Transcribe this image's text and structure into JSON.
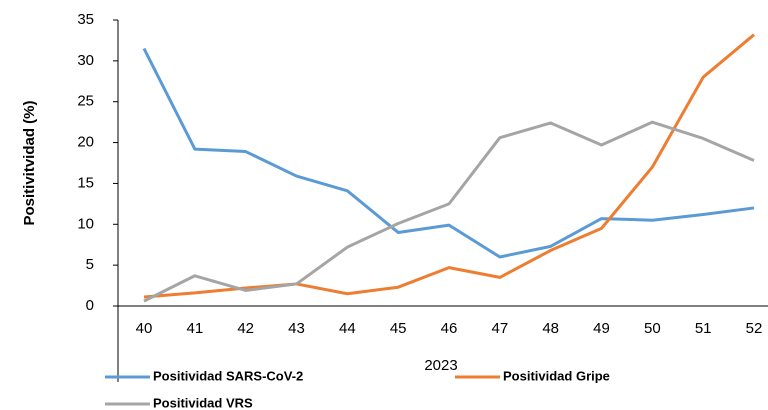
{
  "chart_data": {
    "type": "line",
    "x_label": "2023",
    "y_label": "Positivitvidad (%)",
    "categories": [
      "40",
      "41",
      "42",
      "43",
      "44",
      "45",
      "46",
      "47",
      "48",
      "49",
      "50",
      "51",
      "52"
    ],
    "series": [
      {
        "name": "Positividad SARS-CoV-2",
        "color": "#5b9bd5",
        "values": [
          31.5,
          19.2,
          18.9,
          15.9,
          14.1,
          9.0,
          9.9,
          6.0,
          7.3,
          10.7,
          10.5,
          11.2,
          12.0
        ]
      },
      {
        "name": "Positividad Gripe",
        "color": "#ed7d31",
        "values": [
          1.1,
          1.6,
          2.2,
          2.7,
          1.5,
          2.3,
          4.7,
          3.5,
          6.8,
          9.5,
          17.0,
          28.0,
          33.2
        ]
      },
      {
        "name": "Positividad VRS",
        "color": "#a5a5a5",
        "values": [
          0.6,
          3.7,
          1.9,
          2.7,
          7.2,
          10.1,
          12.5,
          20.6,
          22.4,
          19.7,
          22.5,
          20.5,
          17.8
        ]
      }
    ],
    "ylim": [
      0,
      35
    ],
    "yticks": [
      0,
      5,
      10,
      15,
      20,
      25,
      30,
      35
    ],
    "grid": false
  }
}
